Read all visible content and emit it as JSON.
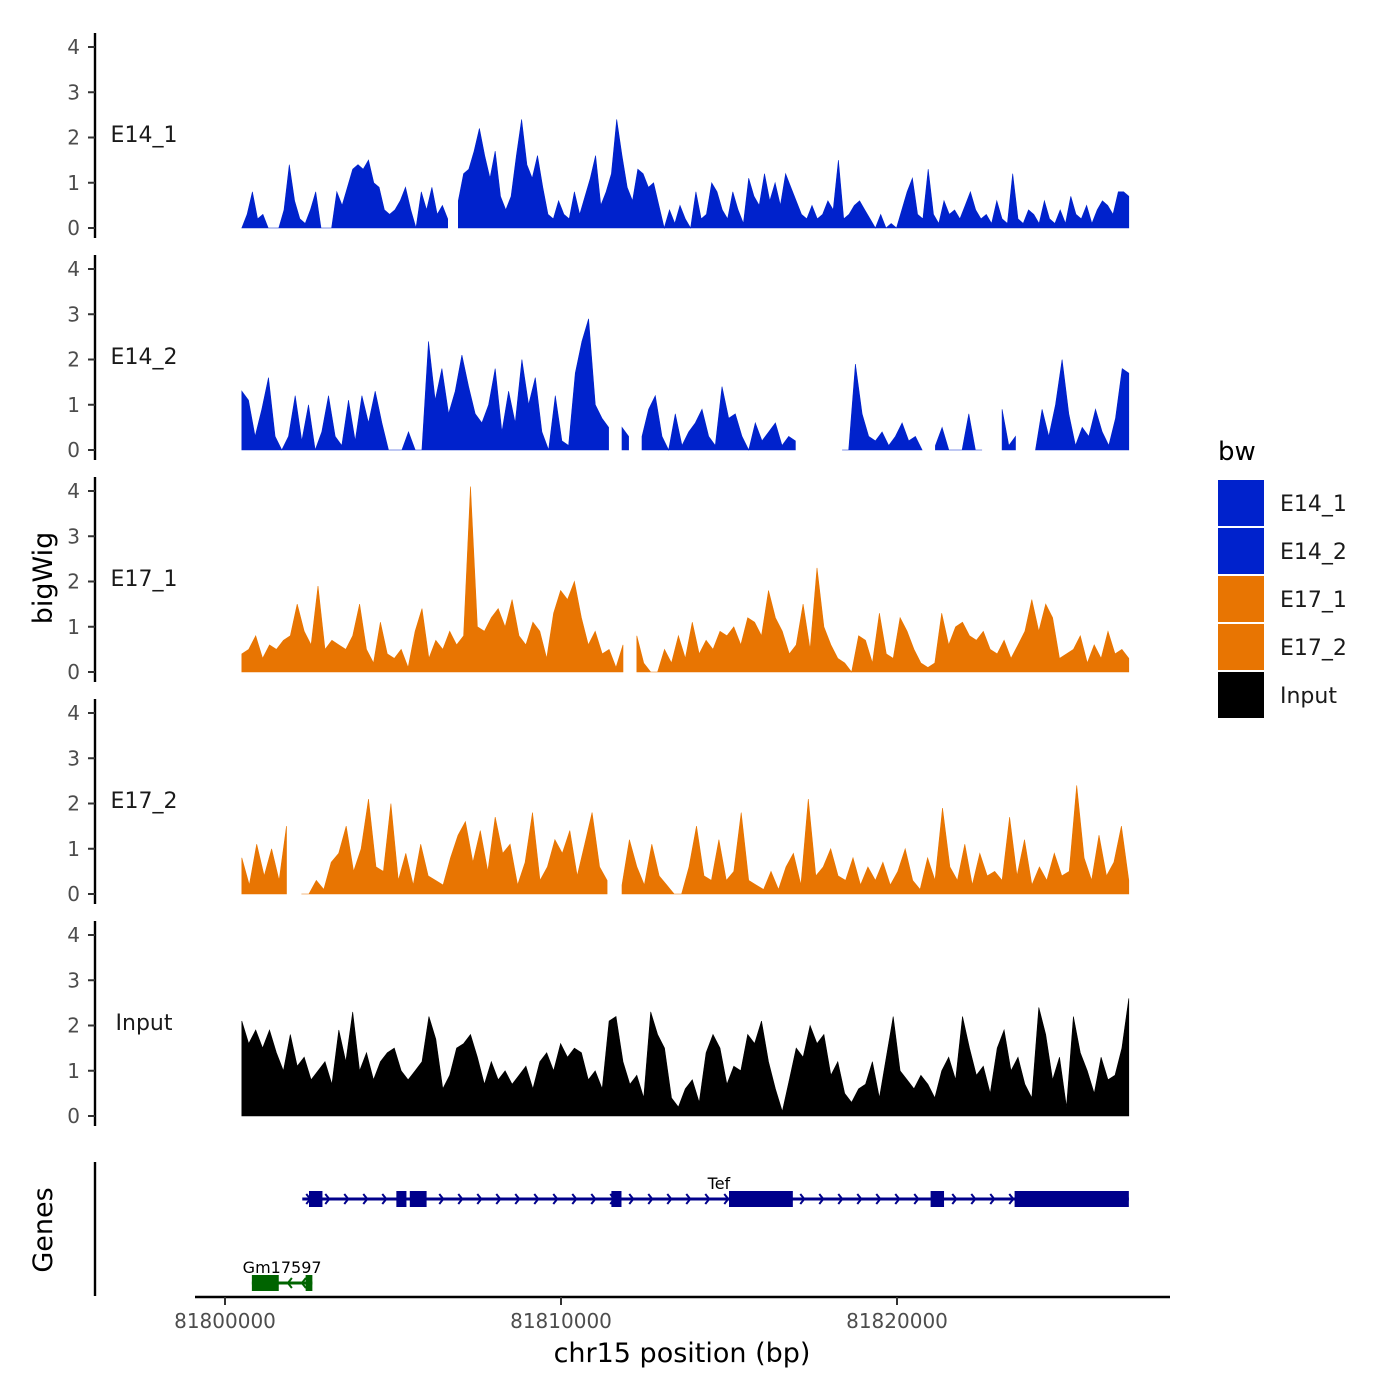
{
  "chart_data": {
    "type": "area",
    "y_axis_title": "bigWig",
    "genes_axis_title": "Genes",
    "x_axis_title": "chr15 position (bp)",
    "x_range": [
      81800000,
      81827000
    ],
    "x_ticks": [
      81800000,
      81810000,
      81820000
    ],
    "x_tick_labels": [
      "81800000",
      "81810000",
      "81820000"
    ],
    "y_range": [
      0,
      4.2
    ],
    "y_ticks": [
      0,
      1,
      2,
      3,
      4
    ],
    "y_tick_labels": [
      "0",
      "1",
      "2",
      "3",
      "4"
    ],
    "legend_title": "bw",
    "legend_position": "right",
    "tracks": [
      {
        "name": "E14_1",
        "color": "#0022CC",
        "x_start": 81800500,
        "x_end": 81826900,
        "values": [
          0,
          0.3,
          0.8,
          0.2,
          0.3,
          0,
          0,
          0,
          0.4,
          1.4,
          0.6,
          0.2,
          0.1,
          0.4,
          0.8,
          0,
          0,
          0,
          0.8,
          0.5,
          0.9,
          1.3,
          1.4,
          1.3,
          1.5,
          1.0,
          0.9,
          0.4,
          0.3,
          0.4,
          0.6,
          0.9,
          0.4,
          0,
          0.8,
          0.4,
          0.9,
          0.3,
          0.5,
          0.2,
          0.8,
          0.6,
          1.2,
          1.3,
          1.7,
          2.2,
          1.6,
          1.1,
          1.7,
          0.7,
          0.4,
          0.7,
          1.6,
          2.4,
          1.4,
          1.1,
          1.6,
          0.9,
          0.3,
          0.2,
          0.6,
          0.3,
          0.2,
          0.8,
          0.3,
          0.7,
          1.1,
          1.6,
          0.5,
          0.8,
          1.2,
          2.4,
          1.6,
          0.9,
          0.6,
          1.3,
          1.2,
          0.9,
          1.0,
          0.5,
          0,
          0.4,
          0.1,
          0.5,
          0.2,
          0,
          0.8,
          0.2,
          0.3,
          1.0,
          0.8,
          0.4,
          0.2,
          0.8,
          0.4,
          0.1,
          1.1,
          0.7,
          0.5,
          1.2,
          0.6,
          1.0,
          0.5,
          1.2,
          0.9,
          0.6,
          0.3,
          0.2,
          0.5,
          0.2,
          0.3,
          0.6,
          0.4,
          1.5,
          0.2,
          0.3,
          0.5,
          0.6,
          0.4,
          0.2,
          0,
          0.3,
          0,
          0.1,
          0,
          0.4,
          0.8,
          1.1,
          0.3,
          0.2,
          1.3,
          0.3,
          0.1,
          0.6,
          0.3,
          0.4,
          0.2,
          0.5,
          0.8,
          0.4,
          0.2,
          0.3,
          0.1,
          0.6,
          0.2,
          0.1,
          1.2,
          0.2,
          0.1,
          0.4,
          0.3,
          0.1,
          0.6,
          0.2,
          0.1,
          0.4,
          0.1,
          0.7,
          0.3,
          0.2,
          0.5,
          0.1,
          0.4,
          0.6,
          0.5,
          0.3,
          0.8,
          0.8,
          0.7
        ],
        "gaps": [
          [
            81806700,
            81806900
          ]
        ]
      },
      {
        "name": "E14_2",
        "color": "#0022CC",
        "x_start": 81800500,
        "x_end": 81826900,
        "values": [
          1.3,
          1.1,
          0.3,
          0.9,
          1.6,
          0.3,
          0,
          0.3,
          1.2,
          0.2,
          1.0,
          0,
          0.4,
          1.2,
          0.3,
          0.1,
          1.1,
          0.2,
          1.2,
          0.6,
          1.3,
          0.6,
          0,
          0,
          0,
          0.4,
          0,
          0,
          2.4,
          1.1,
          1.8,
          0.8,
          1.3,
          2.1,
          1.4,
          0.8,
          0.6,
          1.0,
          1.8,
          0.4,
          1.3,
          0.6,
          2.0,
          1.0,
          1.6,
          0.4,
          0,
          1.2,
          0.2,
          0.1,
          1.7,
          2.4,
          2.9,
          1.0,
          0.7,
          0.5,
          1.6,
          0.5,
          0.3,
          0.7,
          0.3,
          0.9,
          1.2,
          0.3,
          0,
          0.8,
          0.1,
          0.4,
          0.6,
          0.9,
          0.3,
          0.1,
          1.4,
          0.7,
          0.8,
          0.3,
          0,
          0.6,
          0.2,
          0.4,
          0.6,
          0.1,
          0.3,
          0.2,
          0.2,
          0,
          0,
          0,
          0,
          0,
          0,
          0,
          1.9,
          0.8,
          0.3,
          0.2,
          0.4,
          0.1,
          0.3,
          0.6,
          0.2,
          0.3,
          0,
          0,
          0.1,
          0.5,
          0,
          0,
          0,
          0.8,
          0,
          0,
          0,
          0,
          0.9,
          0.1,
          0.3,
          0.1,
          0.4,
          0,
          0.9,
          0.3,
          1.0,
          2.0,
          0.8,
          0.1,
          0.5,
          0.3,
          0.9,
          0.4,
          0.1,
          0.7,
          1.8,
          1.7
        ],
        "gaps": [
          [
            81804900,
            81805000
          ],
          [
            81807500,
            81807600
          ],
          [
            81811600,
            81811700
          ],
          [
            81812200,
            81812300
          ],
          [
            81817100,
            81818300
          ],
          [
            81820800,
            81821100
          ],
          [
            81822700,
            81823100
          ],
          [
            81823600,
            81824000
          ]
        ]
      },
      {
        "name": "E17_1",
        "color": "#E87502",
        "x_start": 81800500,
        "x_end": 81826900,
        "values": [
          0.4,
          0.5,
          0.8,
          0.3,
          0.6,
          0.5,
          0.7,
          0.8,
          1.5,
          0.9,
          0.6,
          1.9,
          0.5,
          0.7,
          0.6,
          0.5,
          0.8,
          1.5,
          0.5,
          0.2,
          1.1,
          0.4,
          0.3,
          0.5,
          0.1,
          0.9,
          1.4,
          0.3,
          0.7,
          0.5,
          0.9,
          0.6,
          0.8,
          4.1,
          1.0,
          0.9,
          1.2,
          1.4,
          1.0,
          1.6,
          0.8,
          0.6,
          1.1,
          0.9,
          0.3,
          1.3,
          1.8,
          1.6,
          2.0,
          1.2,
          0.6,
          0.9,
          0.4,
          0.5,
          0.1,
          0.6,
          1.3,
          0.8,
          0.2,
          0,
          0,
          0.5,
          0.2,
          0.8,
          0.3,
          1.1,
          0.4,
          0.7,
          0.5,
          0.9,
          0.8,
          1.0,
          0.6,
          1.2,
          1.1,
          0.8,
          1.8,
          1.2,
          0.9,
          0.4,
          0.6,
          1.5,
          0.5,
          2.3,
          1.0,
          0.6,
          0.3,
          0.2,
          0,
          0.8,
          0.7,
          0.2,
          1.3,
          0.4,
          0.3,
          1.2,
          0.9,
          0.5,
          0.2,
          0.1,
          0.2,
          1.3,
          0.6,
          1.0,
          1.1,
          0.8,
          0.7,
          0.9,
          0.5,
          0.4,
          0.7,
          0.3,
          0.6,
          0.9,
          1.6,
          0.9,
          1.5,
          1.2,
          0.3,
          0.4,
          0.5,
          0.8,
          0.2,
          0.6,
          0.3,
          0.9,
          0.4,
          0.5,
          0.3
        ],
        "gaps": [
          [
            81812000,
            81812200
          ]
        ]
      },
      {
        "name": "E17_2",
        "color": "#E87502",
        "x_start": 81800500,
        "x_end": 81826900,
        "values": [
          0.8,
          0.2,
          1.1,
          0.4,
          1.0,
          0.3,
          1.5,
          0.2,
          0,
          0,
          0.3,
          0.1,
          0.7,
          0.9,
          1.5,
          0.5,
          1.0,
          2.1,
          0.6,
          0.5,
          2.0,
          0.3,
          0.9,
          0.2,
          1.1,
          0.4,
          0.3,
          0.2,
          0.8,
          1.3,
          1.6,
          0.7,
          1.4,
          0.5,
          1.7,
          0.9,
          1.1,
          0.2,
          0.7,
          1.8,
          0.3,
          0.6,
          1.2,
          0.9,
          1.4,
          0.4,
          1.1,
          1.8,
          0.6,
          0.3,
          1.5,
          0.2,
          1.2,
          0.6,
          0.2,
          1.1,
          0.4,
          0.2,
          0,
          0,
          0.6,
          1.5,
          0.4,
          0.3,
          1.2,
          0.3,
          0.5,
          1.8,
          0.3,
          0.2,
          0.1,
          0.5,
          0.1,
          0.6,
          0.9,
          0.2,
          2.1,
          0.4,
          0.6,
          1.0,
          0.4,
          0.3,
          0.8,
          0.2,
          0.6,
          0.3,
          0.7,
          0.2,
          0.5,
          1.0,
          0.3,
          0.1,
          0.8,
          0.3,
          1.9,
          0.6,
          0.3,
          1.1,
          0.2,
          0.9,
          0.4,
          0.5,
          0.3,
          1.7,
          0.4,
          1.2,
          0.2,
          0.6,
          0.3,
          0.9,
          0.4,
          0.5,
          2.4,
          0.8,
          0.3,
          1.3,
          0.4,
          0.7,
          1.5,
          0.3
        ],
        "gaps": [
          [
            81802000,
            81802200
          ],
          [
            81811500,
            81811700
          ]
        ]
      },
      {
        "name": "Input",
        "color": "#000000",
        "x_start": 81800500,
        "x_end": 81826900,
        "values": [
          2.1,
          1.6,
          1.9,
          1.5,
          1.9,
          1.4,
          1.0,
          1.8,
          1.1,
          1.3,
          0.8,
          1.0,
          1.2,
          0.7,
          1.9,
          1.2,
          2.3,
          1.0,
          1.4,
          0.8,
          1.2,
          1.4,
          1.5,
          1.0,
          0.8,
          1.0,
          1.2,
          2.2,
          1.7,
          0.6,
          0.9,
          1.5,
          1.6,
          1.8,
          1.3,
          0.7,
          1.2,
          0.8,
          1.0,
          0.7,
          0.9,
          1.1,
          0.6,
          1.2,
          1.4,
          1.0,
          1.6,
          1.3,
          1.5,
          1.4,
          0.8,
          1.0,
          0.6,
          2.1,
          2.2,
          1.2,
          0.7,
          0.9,
          0.4,
          2.3,
          1.8,
          1.5,
          0.4,
          0.2,
          0.6,
          0.8,
          0.3,
          1.4,
          1.8,
          1.5,
          0.7,
          1.1,
          1.0,
          1.8,
          1.6,
          2.1,
          1.2,
          0.6,
          0.1,
          0.8,
          1.5,
          1.3,
          2.0,
          1.6,
          1.8,
          0.9,
          1.2,
          0.5,
          0.3,
          0.6,
          0.7,
          1.2,
          0.4,
          1.3,
          2.2,
          1.0,
          0.8,
          0.6,
          0.9,
          0.7,
          0.4,
          1.0,
          1.3,
          0.8,
          2.2,
          1.5,
          0.9,
          1.1,
          0.5,
          1.5,
          1.9,
          1.0,
          1.3,
          0.7,
          0.4,
          2.4,
          1.8,
          0.8,
          1.3,
          0.2,
          2.2,
          1.4,
          1.0,
          0.5,
          1.3,
          0.8,
          0.9,
          1.5,
          2.6
        ],
        "gaps": []
      }
    ],
    "legend_entries": [
      {
        "label": "E14_1",
        "color": "#0022CC"
      },
      {
        "label": "E14_2",
        "color": "#0022CC"
      },
      {
        "label": "E17_1",
        "color": "#E87502"
      },
      {
        "label": "E17_2",
        "color": "#E87502"
      },
      {
        "label": "Input",
        "color": "#000000"
      }
    ],
    "genes": [
      {
        "name": "Tef",
        "strand": "+",
        "color": "#00008B",
        "start": 81802300,
        "end": 81826900,
        "exons": [
          [
            81802500,
            81802900
          ],
          [
            81805100,
            81805400
          ],
          [
            81805500,
            81806000
          ],
          [
            81811500,
            81811800
          ],
          [
            81815000,
            81816900
          ],
          [
            81821000,
            81821400
          ],
          [
            81823500,
            81826900
          ]
        ],
        "row": 1
      },
      {
        "name": "Gm17597",
        "strand": "-",
        "color": "#006400",
        "start": 81800800,
        "end": 81802600,
        "exons": [
          [
            81800800,
            81801600
          ],
          [
            81802400,
            81802600
          ]
        ],
        "row": 2
      }
    ]
  }
}
